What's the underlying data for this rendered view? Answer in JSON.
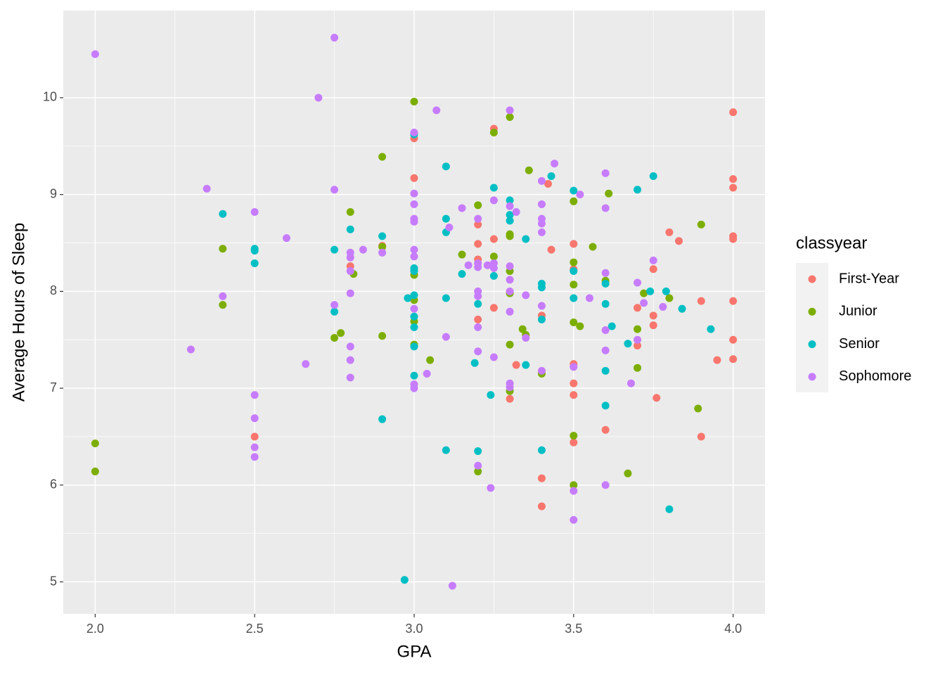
{
  "chart_data": {
    "type": "scatter",
    "x_label": "GPA",
    "y_label": "Average Hours of Sleep",
    "legend_title": "classyear",
    "legend_position": "right",
    "xlim": [
      1.9,
      4.1
    ],
    "ylim": [
      4.67,
      10.9
    ],
    "xticks": [
      {
        "value": 2,
        "label": "2.0"
      },
      {
        "value": 2.5,
        "label": "2.5"
      },
      {
        "value": 3,
        "label": "3.0"
      },
      {
        "value": 3.5,
        "label": "3.5"
      },
      {
        "value": 4,
        "label": "4.0"
      }
    ],
    "yticks": [
      5,
      6,
      7,
      8,
      9,
      10
    ],
    "grid": true,
    "minor_grid": true,
    "series": [
      {
        "name": "First-Year",
        "color": "#f8766d",
        "x": [
          2.5,
          2.8,
          2.9,
          3.0,
          3.0,
          3.2,
          3.2,
          3.2,
          3.2,
          3.25,
          3.25,
          3.25,
          3.3,
          3.32,
          3.4,
          3.4,
          3.4,
          3.42,
          3.43,
          3.5,
          3.5,
          3.5,
          3.5,
          3.5,
          3.5,
          3.6,
          3.7,
          3.7,
          3.75,
          3.75,
          3.75,
          3.76,
          3.8,
          3.83,
          3.9,
          3.9,
          3.95,
          4.0,
          4.0,
          4.0,
          4.0,
          4.0,
          4.0,
          4.0,
          4.0
        ],
        "values": [
          6.5,
          8.26,
          8.47,
          9.58,
          9.17,
          8.69,
          8.49,
          8.33,
          7.71,
          9.68,
          8.54,
          7.83,
          6.89,
          7.24,
          7.75,
          6.07,
          5.78,
          9.11,
          8.43,
          8.49,
          8.23,
          7.25,
          7.05,
          6.93,
          6.44,
          6.57,
          7.83,
          7.44,
          8.23,
          7.75,
          7.65,
          6.9,
          8.61,
          8.52,
          7.9,
          6.5,
          7.29,
          9.85,
          9.16,
          9.07,
          8.57,
          8.54,
          7.9,
          7.5,
          7.3
        ]
      },
      {
        "name": "Junior",
        "color": "#7cae00",
        "x": [
          2.0,
          2.0,
          2.4,
          2.4,
          2.75,
          2.77,
          2.8,
          2.81,
          2.9,
          2.9,
          2.9,
          3.0,
          3.0,
          3.0,
          3.0,
          3.0,
          3.05,
          3.15,
          3.2,
          3.2,
          3.25,
          3.25,
          3.3,
          3.3,
          3.3,
          3.3,
          3.3,
          3.3,
          3.3,
          3.34,
          3.35,
          3.36,
          3.4,
          3.5,
          3.5,
          3.5,
          3.5,
          3.5,
          3.5,
          3.52,
          3.56,
          3.6,
          3.61,
          3.67,
          3.7,
          3.7,
          3.72,
          3.8,
          3.89,
          3.9
        ],
        "values": [
          6.43,
          6.14,
          8.44,
          7.86,
          7.52,
          7.57,
          8.82,
          8.18,
          9.39,
          8.46,
          7.54,
          9.96,
          8.17,
          7.91,
          7.69,
          7.45,
          7.29,
          8.38,
          8.89,
          6.14,
          9.64,
          8.36,
          9.8,
          8.59,
          8.57,
          8.21,
          7.98,
          7.45,
          6.97,
          7.61,
          7.55,
          9.25,
          7.15,
          8.93,
          8.3,
          8.07,
          7.68,
          6.51,
          6.0,
          7.64,
          8.46,
          8.11,
          9.01,
          6.12,
          7.61,
          7.21,
          7.98,
          7.93,
          6.79,
          8.69
        ]
      },
      {
        "name": "Senior",
        "color": "#00bfc4",
        "x": [
          2.4,
          2.5,
          2.5,
          2.5,
          2.75,
          2.75,
          2.8,
          2.9,
          2.9,
          2.97,
          2.98,
          3.0,
          3.0,
          3.0,
          3.0,
          3.0,
          3.0,
          3.0,
          3.0,
          3.1,
          3.1,
          3.1,
          3.1,
          3.1,
          3.15,
          3.19,
          3.2,
          3.2,
          3.24,
          3.25,
          3.25,
          3.3,
          3.3,
          3.3,
          3.35,
          3.35,
          3.4,
          3.4,
          3.4,
          3.4,
          3.43,
          3.5,
          3.5,
          3.5,
          3.6,
          3.6,
          3.6,
          3.6,
          3.62,
          3.67,
          3.7,
          3.74,
          3.75,
          3.79,
          3.8,
          3.84,
          3.93
        ],
        "values": [
          8.8,
          8.44,
          8.42,
          8.29,
          8.43,
          7.79,
          8.64,
          8.57,
          6.68,
          5.02,
          7.93,
          9.62,
          8.24,
          8.21,
          7.96,
          7.74,
          7.63,
          7.43,
          7.13,
          9.29,
          8.75,
          8.61,
          7.93,
          6.36,
          8.18,
          7.26,
          7.87,
          6.35,
          6.93,
          9.07,
          8.16,
          8.94,
          8.79,
          8.73,
          8.54,
          7.24,
          8.08,
          8.04,
          7.71,
          6.36,
          9.19,
          9.04,
          8.21,
          7.93,
          8.08,
          7.87,
          7.18,
          6.82,
          7.64,
          7.46,
          9.05,
          8.0,
          9.19,
          8.0,
          5.75,
          7.82,
          7.61
        ]
      },
      {
        "name": "Sophomore",
        "color": "#c77cff",
        "x": [
          2.0,
          2.3,
          2.35,
          2.4,
          2.5,
          2.5,
          2.5,
          2.5,
          2.5,
          2.6,
          2.66,
          2.7,
          2.75,
          2.75,
          2.75,
          2.8,
          2.8,
          2.8,
          2.8,
          2.8,
          2.8,
          2.8,
          2.84,
          2.9,
          3.0,
          3.0,
          3.0,
          3.0,
          3.0,
          3.0,
          3.0,
          3.0,
          3.0,
          3.0,
          3.04,
          3.07,
          3.1,
          3.11,
          3.12,
          3.15,
          3.17,
          3.2,
          3.2,
          3.2,
          3.2,
          3.2,
          3.2,
          3.2,
          3.2,
          3.23,
          3.24,
          3.25,
          3.25,
          3.25,
          3.25,
          3.3,
          3.3,
          3.3,
          3.3,
          3.3,
          3.3,
          3.3,
          3.3,
          3.32,
          3.35,
          3.35,
          3.4,
          3.4,
          3.4,
          3.4,
          3.4,
          3.4,
          3.4,
          3.44,
          3.5,
          3.5,
          3.5,
          3.52,
          3.55,
          3.6,
          3.6,
          3.6,
          3.6,
          3.6,
          3.6,
          3.68,
          3.7,
          3.7,
          3.72,
          3.75,
          3.78
        ],
        "values": [
          10.45,
          7.4,
          9.06,
          7.95,
          8.82,
          6.93,
          6.69,
          6.39,
          6.29,
          8.55,
          7.25,
          10.0,
          10.62,
          9.05,
          7.86,
          8.4,
          8.35,
          8.21,
          7.98,
          7.43,
          7.29,
          7.11,
          8.43,
          8.4,
          9.64,
          9.01,
          8.9,
          8.75,
          8.72,
          8.43,
          8.36,
          7.82,
          7.04,
          7.0,
          7.15,
          9.87,
          7.53,
          8.66,
          4.96,
          8.86,
          8.27,
          8.75,
          8.29,
          8.25,
          8.0,
          7.95,
          7.63,
          7.38,
          6.2,
          8.27,
          5.97,
          8.94,
          8.29,
          8.24,
          7.32,
          9.87,
          8.88,
          8.26,
          8.12,
          8.0,
          7.79,
          7.05,
          7.01,
          8.82,
          7.96,
          7.52,
          9.14,
          8.9,
          8.75,
          8.7,
          8.61,
          7.85,
          7.18,
          9.32,
          7.22,
          5.94,
          5.64,
          9.0,
          7.93,
          9.22,
          8.86,
          8.19,
          7.6,
          7.39,
          6.0,
          7.05,
          8.09,
          7.5,
          7.88,
          8.32,
          7.84
        ]
      }
    ]
  }
}
